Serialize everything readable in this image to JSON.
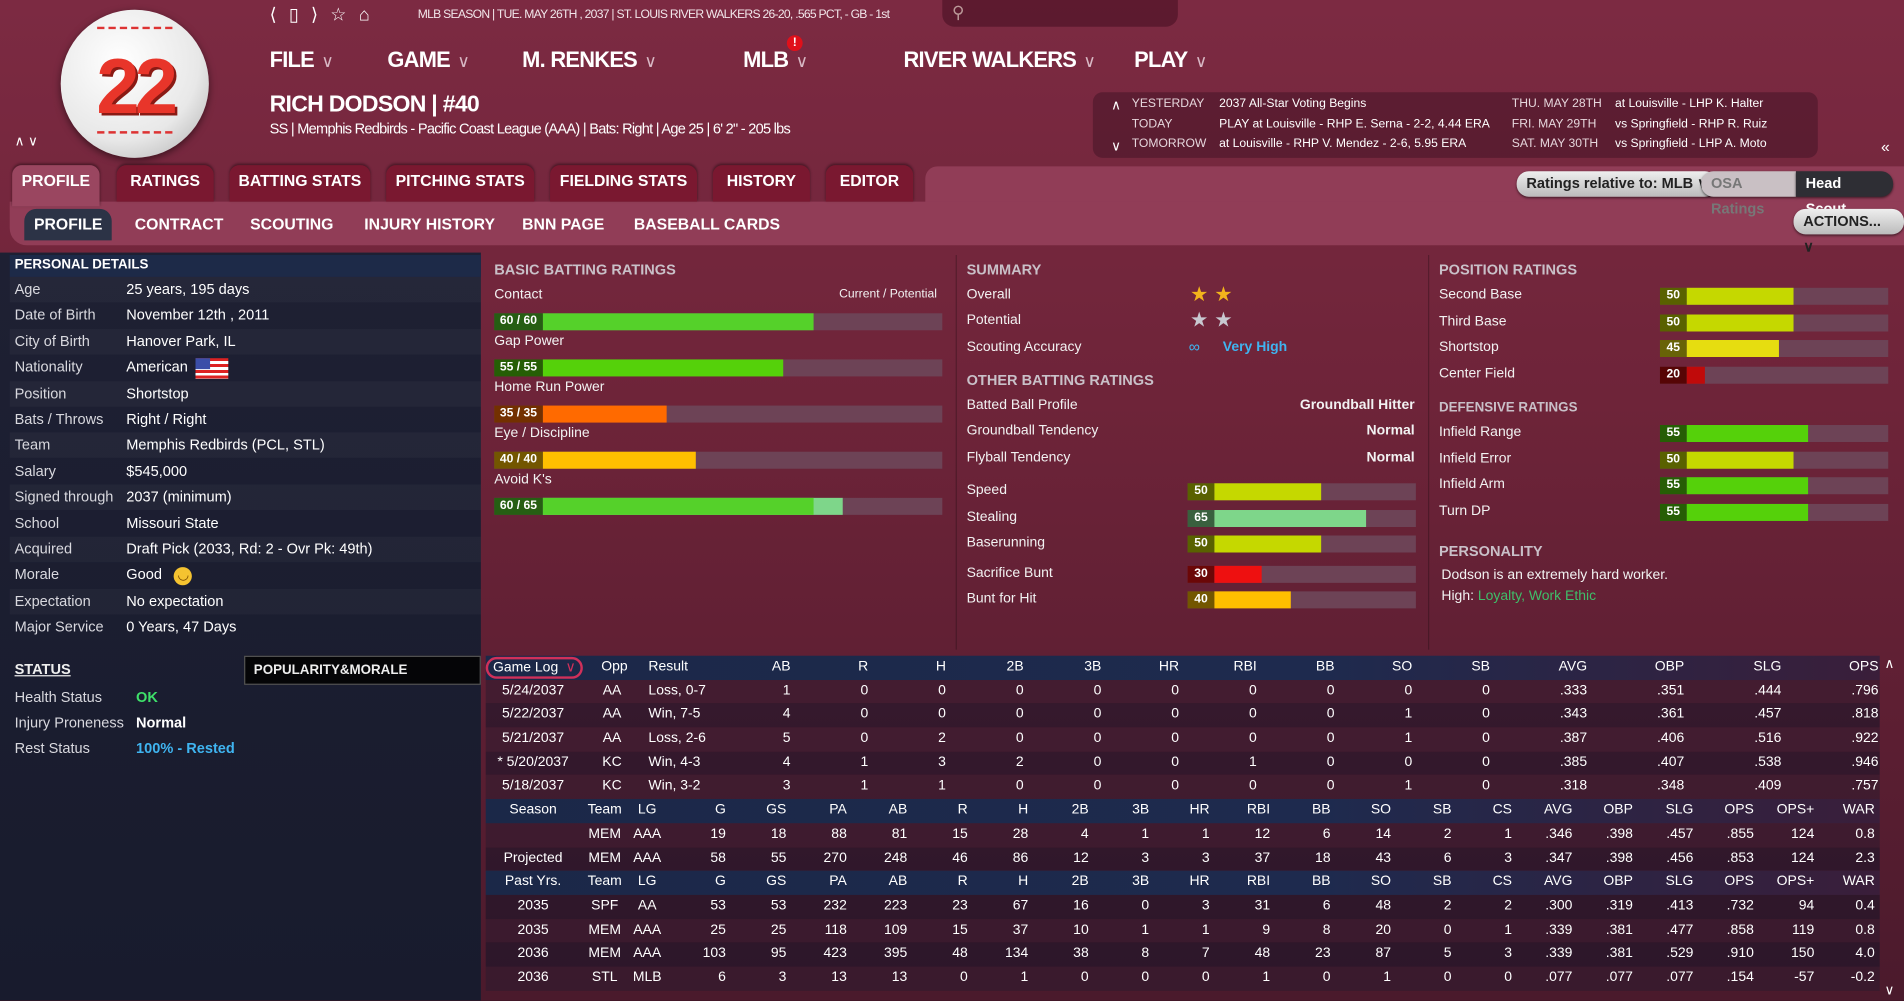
{
  "header": {
    "jersey_number": "22",
    "nav_icons": [
      "back-icon",
      "page-icon",
      "forward-icon",
      "star-icon",
      "home-icon"
    ],
    "nav_glyphs": [
      "⟨",
      "▯",
      "⟩",
      "☆",
      "⌂"
    ],
    "top_info": "MLB SEASON  |  TUE. MAY 26TH , 2037  |  ST. LOUIS RIVER WALKERS   26-20, .565 PCT, - GB - 1st",
    "search_placeholder": "",
    "menu": [
      {
        "label": "FILE"
      },
      {
        "label": "GAME"
      },
      {
        "label": "M. RENKES"
      },
      {
        "label": "MLB",
        "alert": "!"
      },
      {
        "label": "RIVER WALKERS"
      },
      {
        "label": "PLAY"
      }
    ],
    "player_name": "RICH DODSON  |  #40",
    "player_sub": "SS | Memphis Redbirds - Pacific Coast League (AAA) | Bats: Right | Age 25 | 6' 2\" - 205 lbs",
    "updown": "∧ ∨"
  },
  "schedule": {
    "left": [
      {
        "day": "YESTERDAY",
        "text": "2037 All-Star Voting Begins"
      },
      {
        "day": "TODAY",
        "text": "PLAY at Louisville - RHP E. Serna - 2-2, 4.44 ERA"
      },
      {
        "day": "TOMORROW",
        "text": "at Louisville - RHP V. Mendez - 2-6, 5.95 ERA"
      }
    ],
    "right": [
      {
        "day": "THU. MAY 28TH",
        "text": "at Louisville - LHP K. Halter"
      },
      {
        "day": "FRI. MAY 29TH",
        "text": "vs Springfield - RHP R. Ruiz"
      },
      {
        "day": "SAT. MAY 30TH",
        "text": "vs Springfield - LHP A. Moto"
      }
    ]
  },
  "tabs": [
    {
      "label": "PROFILE",
      "active": true
    },
    {
      "label": "RATINGS"
    },
    {
      "label": "BATTING STATS"
    },
    {
      "label": "PITCHING STATS"
    },
    {
      "label": "FIELDING STATS"
    },
    {
      "label": "HISTORY"
    },
    {
      "label": "EDITOR"
    }
  ],
  "subtabs": [
    {
      "label": "PROFILE",
      "active": true
    },
    {
      "label": "CONTRACT"
    },
    {
      "label": "SCOUTING"
    },
    {
      "label": "INJURY HISTORY"
    },
    {
      "label": "BNN PAGE"
    },
    {
      "label": "BASEBALL CARDS"
    }
  ],
  "controls": {
    "ratings_relative": "Ratings relative to: MLB  ∨",
    "osa": "OSA Ratings",
    "head_scout": "Head Scout",
    "actions": "ACTIONS...  ∨"
  },
  "personal": {
    "title": "PERSONAL DETAILS",
    "rows": [
      {
        "k": "Age",
        "v": "25 years, 195 days"
      },
      {
        "k": "Date of Birth",
        "v": "November 12th , 2011"
      },
      {
        "k": "City of Birth",
        "v": "Hanover Park, IL"
      },
      {
        "k": "Nationality",
        "v": "American",
        "icon": "flag"
      },
      {
        "k": "Position",
        "v": "Shortstop"
      },
      {
        "k": "Bats / Throws",
        "v": "Right / Right"
      },
      {
        "k": "Team",
        "v": "Memphis Redbirds (PCL, STL)"
      },
      {
        "k": "Salary",
        "v": "$545,000"
      },
      {
        "k": "Signed through",
        "v": "2037 (minimum)"
      },
      {
        "k": "School",
        "v": "Missouri State"
      },
      {
        "k": "Acquired",
        "v": "Draft Pick (2033, Rd: 2 - Ovr Pk: 49th)"
      },
      {
        "k": "Morale",
        "v": "Good",
        "icon": "smiley"
      },
      {
        "k": "Expectation",
        "v": "No expectation"
      },
      {
        "k": "Major Service",
        "v": "0 Years, 47 Days"
      }
    ]
  },
  "status": {
    "title": "STATUS",
    "popularity_tab": "POPULARITY&MORALE",
    "rows": [
      {
        "k": "Health Status",
        "v": "OK",
        "color": "#3ee06a"
      },
      {
        "k": "Injury Proneness",
        "v": "Normal",
        "color": "#ffffff"
      },
      {
        "k": "Rest Status",
        "v": "100% - Rested",
        "color": "#3fb4f0"
      }
    ]
  },
  "batting": {
    "title": "BASIC BATTING RATINGS",
    "legend": "Current / Potential",
    "items": [
      {
        "label": "Contact",
        "text": "60 / 60",
        "current": 60,
        "potential": 60
      },
      {
        "label": "Gap Power",
        "text": "55 / 55",
        "current": 55,
        "potential": 55
      },
      {
        "label": "Home Run Power",
        "text": "35 / 35",
        "current": 35,
        "potential": 35
      },
      {
        "label": "Eye / Discipline",
        "text": "40 / 40",
        "current": 40,
        "potential": 40
      },
      {
        "label": "Avoid K's",
        "text": "60 / 65",
        "current": 60,
        "potential": 65
      }
    ]
  },
  "summary": {
    "title": "SUMMARY",
    "overall_label": "Overall",
    "overall_stars": 2,
    "potential_label": "Potential",
    "potential_stars": 2,
    "accuracy_label": "Scouting Accuracy",
    "accuracy_value": "Very High",
    "other_title": "OTHER BATTING RATINGS",
    "other": [
      {
        "k": "Batted Ball Profile",
        "v": "Groundball Hitter"
      },
      {
        "k": "Groundball Tendency",
        "v": "Normal"
      },
      {
        "k": "Flyball Tendency",
        "v": "Normal"
      }
    ],
    "bars": [
      {
        "label": "Speed",
        "value": 50
      },
      {
        "label": "Stealing",
        "value": 65
      },
      {
        "label": "Baserunning",
        "value": 50
      },
      {
        "label": "Sacrifice Bunt",
        "value": 30
      },
      {
        "label": "Bunt for Hit",
        "value": 40
      }
    ]
  },
  "position": {
    "title": "POSITION RATINGS",
    "items": [
      {
        "label": "Second Base",
        "value": 50
      },
      {
        "label": "Third Base",
        "value": 50
      },
      {
        "label": "Shortstop",
        "value": 45
      },
      {
        "label": "Center Field",
        "value": 20
      }
    ],
    "def_title": "DEFENSIVE RATINGS",
    "def": [
      {
        "label": "Infield Range",
        "value": 55
      },
      {
        "label": "Infield Error",
        "value": 50
      },
      {
        "label": "Infield Arm",
        "value": 55
      },
      {
        "label": "Turn DP",
        "value": 55
      }
    ],
    "personality_title": "PERSONALITY",
    "personality_text": "Dodson is an extremely hard worker.",
    "personality_high_label": "High: ",
    "personality_high": "Loyalty, Work Ethic"
  },
  "rating_colors": {
    "20": "#c00a0a",
    "30": "#ee1010",
    "35": "#ff6a00",
    "40": "#ffbf00",
    "45": "#e6dd10",
    "50": "#c5d800",
    "55": "#55d10a",
    "60": "#55d12a",
    "65": "#7ed68a"
  },
  "game_log": {
    "select": "Game Log",
    "headers": [
      "Opp",
      "Result",
      "AB",
      "R",
      "H",
      "2B",
      "3B",
      "HR",
      "RBI",
      "BB",
      "SO",
      "SB",
      "AVG",
      "OBP",
      "SLG",
      "OPS"
    ],
    "rows": [
      [
        "5/24/2037",
        "AA",
        "Loss, 0-7",
        "1",
        "0",
        "0",
        "0",
        "0",
        "0",
        "0",
        "0",
        "0",
        "0",
        ".333",
        ".351",
        ".444",
        ".796"
      ],
      [
        "5/22/2037",
        "AA",
        "Win, 7-5",
        "4",
        "0",
        "0",
        "0",
        "0",
        "0",
        "0",
        "0",
        "1",
        "0",
        ".343",
        ".361",
        ".457",
        ".818"
      ],
      [
        "5/21/2037",
        "AA",
        "Loss, 2-6",
        "5",
        "0",
        "2",
        "0",
        "0",
        "0",
        "0",
        "0",
        "1",
        "0",
        ".387",
        ".406",
        ".516",
        ".922"
      ],
      [
        "* 5/20/2037",
        "KC",
        "Win, 4-3",
        "4",
        "1",
        "3",
        "2",
        "0",
        "0",
        "1",
        "0",
        "0",
        "0",
        ".385",
        ".407",
        ".538",
        ".946"
      ],
      [
        "5/18/2037",
        "KC",
        "Win, 3-2",
        "3",
        "1",
        "1",
        "0",
        "0",
        "0",
        "0",
        "0",
        "1",
        "0",
        ".318",
        ".348",
        ".409",
        ".757"
      ]
    ]
  },
  "season": {
    "headers": [
      "Season",
      "Team",
      "LG",
      "G",
      "GS",
      "PA",
      "AB",
      "R",
      "H",
      "2B",
      "3B",
      "HR",
      "RBI",
      "BB",
      "SO",
      "SB",
      "CS",
      "AVG",
      "OBP",
      "SLG",
      "OPS",
      "OPS+",
      "WAR"
    ],
    "rows": [
      [
        "",
        "MEM",
        "AAA",
        "19",
        "18",
        "88",
        "81",
        "15",
        "28",
        "4",
        "1",
        "1",
        "12",
        "6",
        "14",
        "2",
        "1",
        ".346",
        ".398",
        ".457",
        ".855",
        "124",
        "0.8"
      ],
      [
        "Projected",
        "MEM",
        "AAA",
        "58",
        "55",
        "270",
        "248",
        "46",
        "86",
        "12",
        "3",
        "3",
        "37",
        "18",
        "43",
        "6",
        "3",
        ".347",
        ".398",
        ".456",
        ".853",
        "124",
        "2.3"
      ]
    ]
  },
  "past": {
    "headers": [
      "Past Yrs.",
      "Team",
      "LG",
      "G",
      "GS",
      "PA",
      "AB",
      "R",
      "H",
      "2B",
      "3B",
      "HR",
      "RBI",
      "BB",
      "SO",
      "SB",
      "CS",
      "AVG",
      "OBP",
      "SLG",
      "OPS",
      "OPS+",
      "WAR"
    ],
    "rows": [
      [
        "2035",
        "SPF",
        "AA",
        "53",
        "53",
        "232",
        "223",
        "23",
        "67",
        "16",
        "0",
        "3",
        "31",
        "6",
        "48",
        "2",
        "2",
        ".300",
        ".319",
        ".413",
        ".732",
        "94",
        "0.4"
      ],
      [
        "2035",
        "MEM",
        "AAA",
        "25",
        "25",
        "118",
        "109",
        "15",
        "37",
        "10",
        "1",
        "1",
        "9",
        "8",
        "20",
        "0",
        "1",
        ".339",
        ".381",
        ".477",
        ".858",
        "119",
        "0.8"
      ],
      [
        "2036",
        "MEM",
        "AAA",
        "103",
        "95",
        "423",
        "395",
        "48",
        "134",
        "38",
        "8",
        "7",
        "48",
        "23",
        "87",
        "5",
        "3",
        ".339",
        ".381",
        ".529",
        ".910",
        "150",
        "4.0"
      ],
      [
        "2036",
        "STL",
        "MLB",
        "6",
        "3",
        "13",
        "13",
        "0",
        "1",
        "0",
        "0",
        "0",
        "1",
        "0",
        "1",
        "0",
        "0",
        ".077",
        ".077",
        ".077",
        ".154",
        "-57",
        "-0.2"
      ]
    ]
  }
}
